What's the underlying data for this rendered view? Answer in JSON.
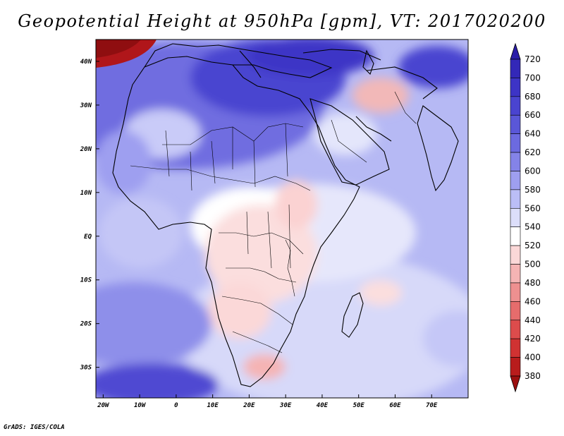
{
  "title": "Geopotential Height at 950hPa [gpm], VT: 2017020200",
  "credit": "GrADS: IGES/COLA",
  "map": {
    "lon_range": [
      -22,
      80
    ],
    "lat_range": [
      -37,
      45
    ],
    "lat_ticks": [
      {
        "value": 40,
        "label": "40N"
      },
      {
        "value": 30,
        "label": "30N"
      },
      {
        "value": 20,
        "label": "20N"
      },
      {
        "value": 10,
        "label": "10N"
      },
      {
        "value": 0,
        "label": "EQ"
      },
      {
        "value": -10,
        "label": "10S"
      },
      {
        "value": -20,
        "label": "20S"
      },
      {
        "value": -30,
        "label": "30S"
      }
    ],
    "lon_ticks": [
      {
        "value": -20,
        "label": "20W"
      },
      {
        "value": -10,
        "label": "10W"
      },
      {
        "value": 0,
        "label": "0"
      },
      {
        "value": 10,
        "label": "10E"
      },
      {
        "value": 20,
        "label": "20E"
      },
      {
        "value": 30,
        "label": "30E"
      },
      {
        "value": 40,
        "label": "40E"
      },
      {
        "value": 50,
        "label": "50E"
      },
      {
        "value": 60,
        "label": "60E"
      },
      {
        "value": 70,
        "label": "70E"
      }
    ]
  },
  "colorbar": {
    "levels": [
      720,
      700,
      680,
      660,
      640,
      620,
      600,
      580,
      560,
      540,
      520,
      500,
      480,
      460,
      440,
      420,
      400,
      380
    ],
    "colors": [
      "#2a1da8",
      "#3328b8",
      "#3d34c6",
      "#4a44d0",
      "#5a57d8",
      "#6c6ae0",
      "#8483e8",
      "#9e9ff0",
      "#bbbef6",
      "#dcdefa",
      "#ffffff",
      "#fbd8d8",
      "#f5b4b4",
      "#ee9090",
      "#e66c6c",
      "#dc4c4c",
      "#d03232",
      "#b81c1c",
      "#9c1010"
    ]
  },
  "fields": [
    {
      "lon": 20,
      "lat": 32,
      "value": 700
    },
    {
      "lon": 38,
      "lat": 38,
      "value": 690
    },
    {
      "lon": -20,
      "lat": 44,
      "value": 390
    },
    {
      "lon": 56,
      "lat": 30,
      "value": 520
    },
    {
      "lon": 22,
      "lat": -5,
      "value": 525
    },
    {
      "lon": 25,
      "lat": -30,
      "value": 500
    },
    {
      "lon": -10,
      "lat": -33,
      "value": 660
    },
    {
      "lon": -5,
      "lat": 24,
      "value": 580
    },
    {
      "lon": 60,
      "lat": -10,
      "value": 545
    },
    {
      "lon": 10,
      "lat": 8,
      "value": 555
    }
  ]
}
